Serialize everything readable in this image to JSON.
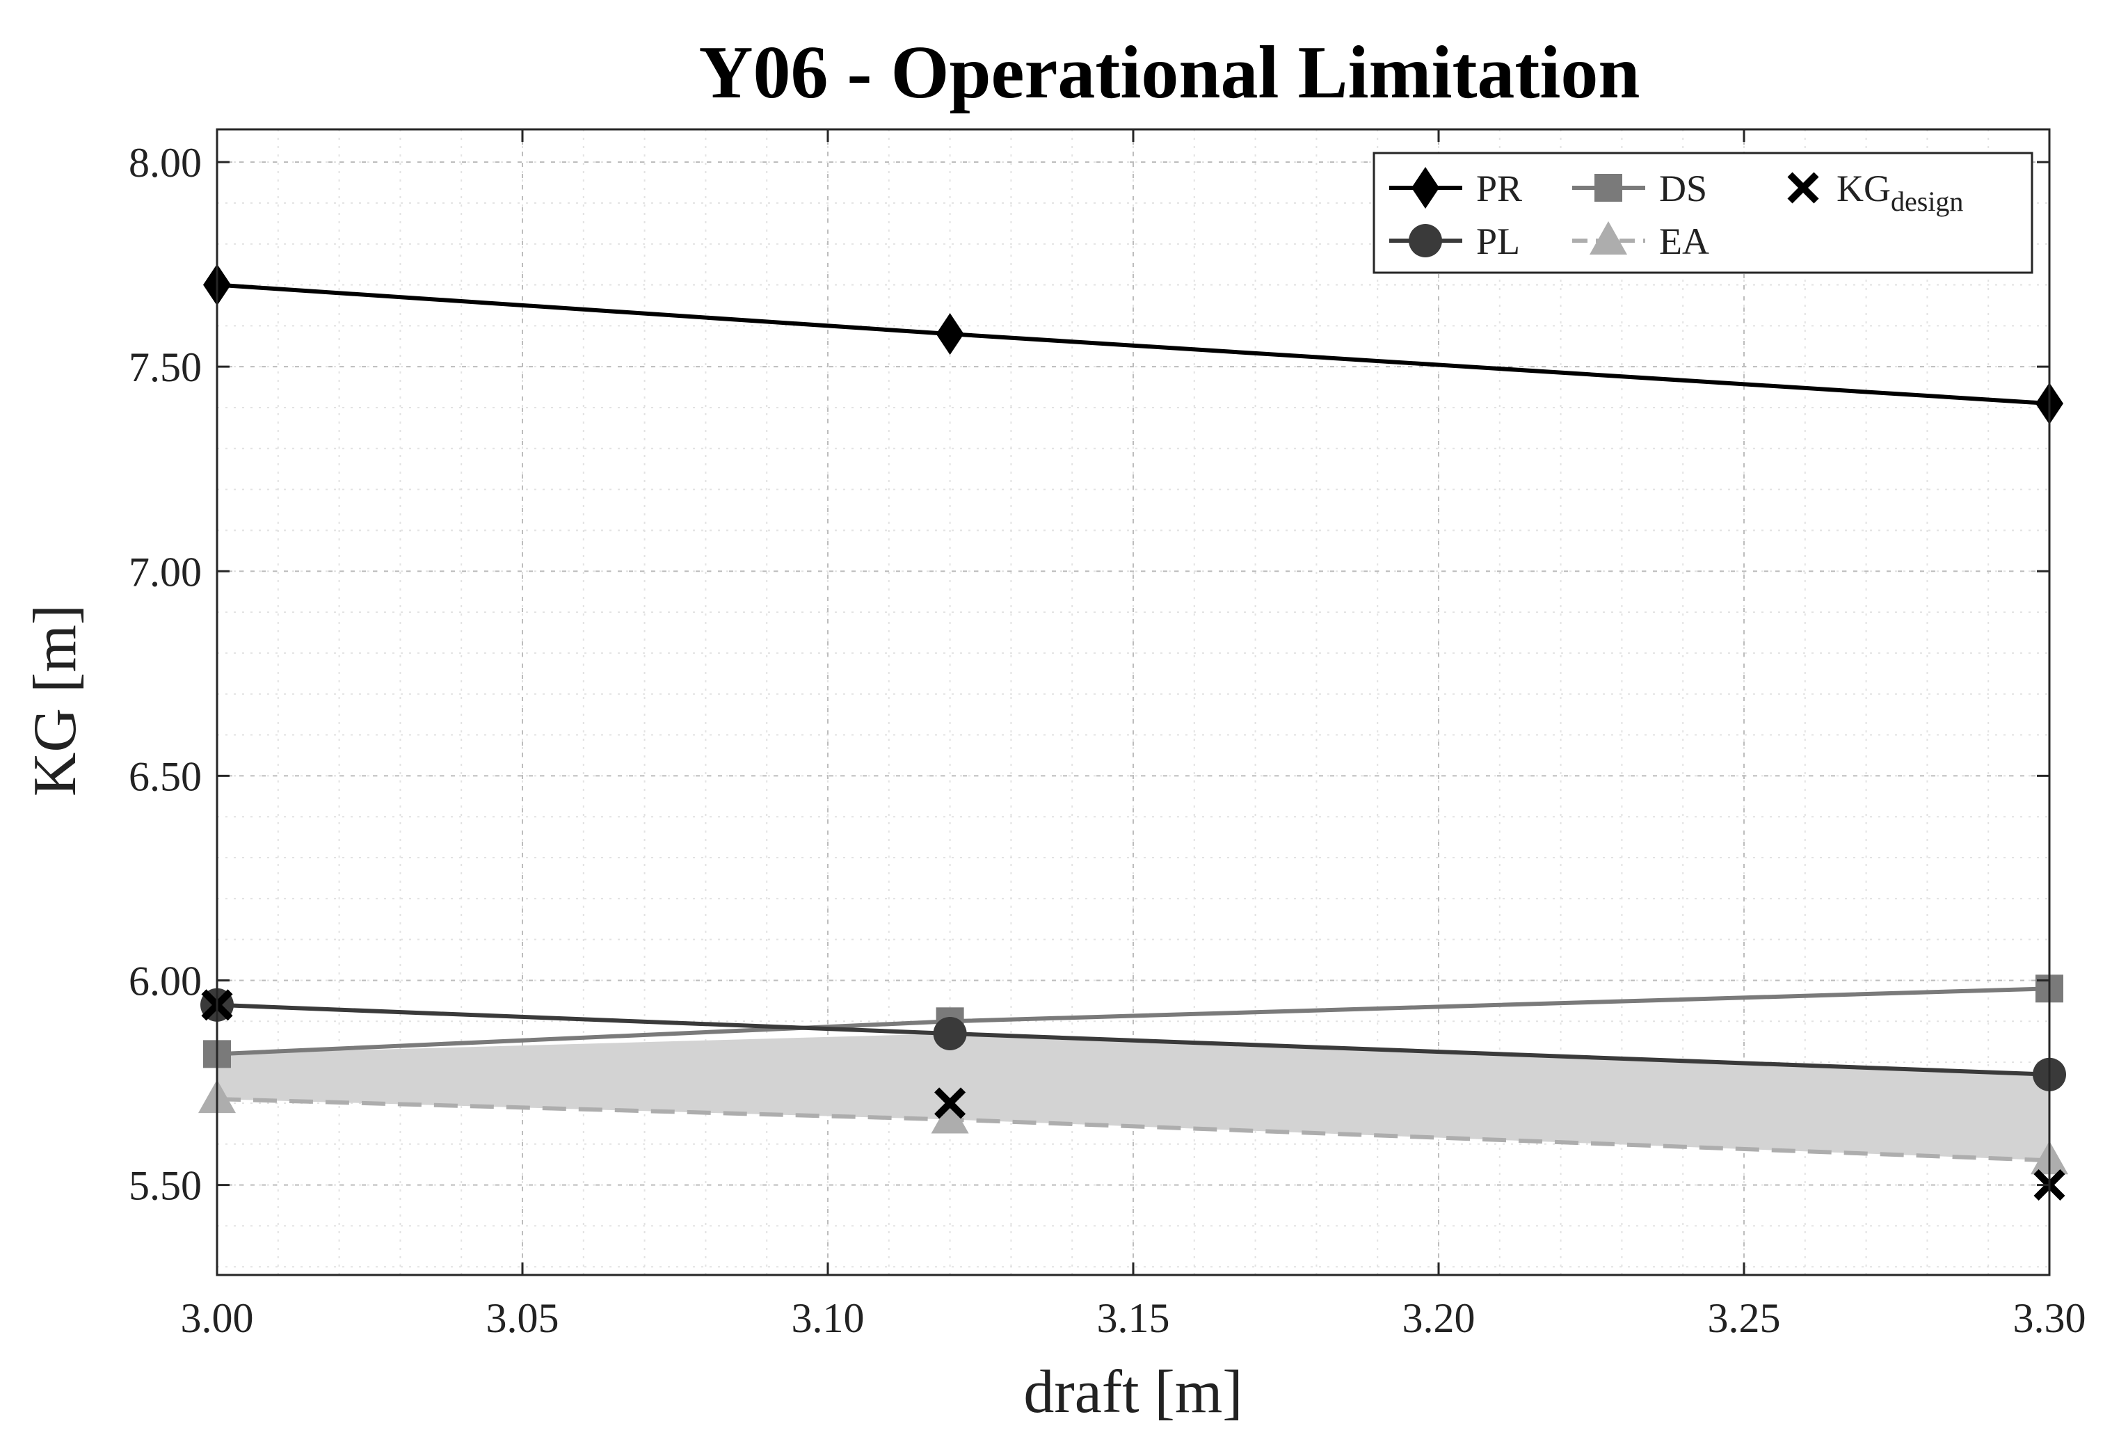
{
  "chart_data": {
    "type": "line",
    "title": "Y06 - Operational Limitation",
    "xlabel": "draft [m]",
    "ylabel": "KG [m]",
    "xlim": [
      3.0,
      3.3
    ],
    "ylim": [
      5.28,
      8.08
    ],
    "xticks": [
      3.0,
      3.05,
      3.1,
      3.15,
      3.2,
      3.25,
      3.3
    ],
    "xtick_labels": [
      "3.00",
      "3.05",
      "3.10",
      "3.15",
      "3.20",
      "3.25",
      "3.30"
    ],
    "yticks": [
      5.5,
      6.0,
      6.5,
      7.0,
      7.5,
      8.0
    ],
    "ytick_labels": [
      "5.50",
      "6.00",
      "6.50",
      "7.00",
      "7.50",
      "8.00"
    ],
    "grid": true,
    "legend_position": "top-right",
    "x": [
      3.0,
      3.12,
      3.3
    ],
    "series": [
      {
        "name": "PR",
        "values": [
          7.7,
          7.58,
          7.41
        ],
        "marker": "diamond",
        "color": "#000000",
        "line": "solid"
      },
      {
        "name": "PL",
        "values": [
          5.94,
          5.87,
          5.77
        ],
        "marker": "circle",
        "color": "#3a3a3a",
        "line": "solid"
      },
      {
        "name": "DS",
        "values": [
          5.82,
          5.9,
          5.98
        ],
        "marker": "square",
        "color": "#7a7a7a",
        "line": "solid"
      },
      {
        "name": "EA",
        "values": [
          5.71,
          5.66,
          5.56
        ],
        "marker": "triangle",
        "color": "#adadad",
        "line": "dashed"
      }
    ],
    "kg_design": {
      "name": "KG",
      "name_sub": "design",
      "marker": "x",
      "color": "#000000",
      "points": [
        {
          "x": 3.0,
          "y": 5.94
        },
        {
          "x": 3.12,
          "y": 5.7
        },
        {
          "x": 3.3,
          "y": 5.5
        }
      ]
    },
    "shaded_region": {
      "between": [
        "EA",
        "min(PL, DS)"
      ],
      "color": "#d3d3d3"
    }
  }
}
